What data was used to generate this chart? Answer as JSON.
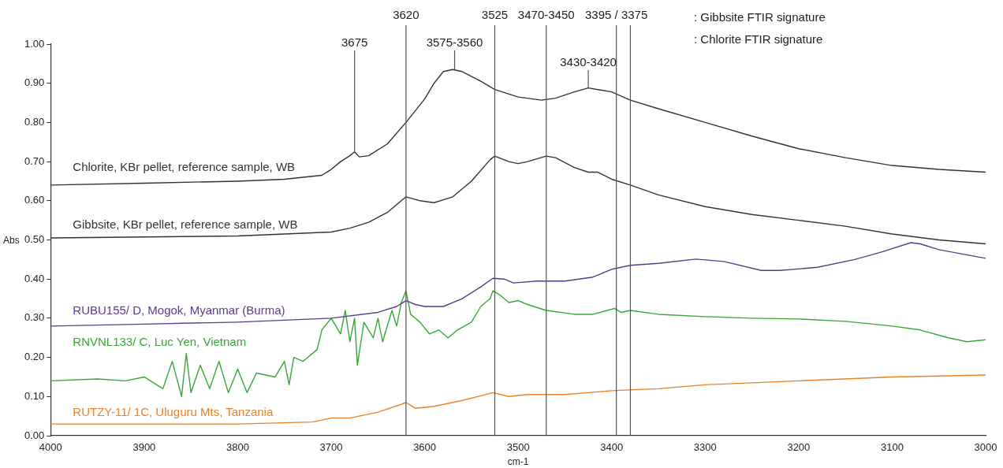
{
  "chart_data": {
    "type": "line",
    "xlabel": "cm-1",
    "ylabel": "Abs",
    "xlim": [
      4000,
      3000
    ],
    "xticks": [
      4000,
      3900,
      3800,
      3700,
      3600,
      3500,
      3400,
      3300,
      3200,
      3100,
      3000
    ],
    "ylim": [
      0,
      1
    ],
    "yticks": [
      {
        "value": 0,
        "label": "0.00"
      },
      {
        "value": 0.1,
        "label": "0.10"
      },
      {
        "value": 0.2,
        "label": "0.20"
      },
      {
        "value": 0.3,
        "label": "0.30"
      },
      {
        "value": 0.4,
        "label": "0.40"
      },
      {
        "value": 0.5,
        "label": "0.50"
      },
      {
        "value": 0.6,
        "label": "0.60"
      },
      {
        "value": 0.7,
        "label": "0.70"
      },
      {
        "value": 0.8,
        "label": "0.80"
      },
      {
        "value": 0.9,
        "label": "0.90"
      },
      {
        "value": 1,
        "label": "1.00"
      }
    ],
    "grid": false,
    "legend": false,
    "marker": "none",
    "line_style": "solid",
    "series": [
      {
        "name": "Chlorite, KBr pellet, reference sample, WB",
        "color": "#333333",
        "x": [
          4000,
          3900,
          3800,
          3750,
          3710,
          3700,
          3690,
          3680,
          3675,
          3670,
          3660,
          3640,
          3620,
          3600,
          3590,
          3580,
          3570,
          3560,
          3540,
          3525,
          3500,
          3475,
          3460,
          3440,
          3425,
          3400,
          3380,
          3350,
          3300,
          3250,
          3200,
          3150,
          3100,
          3050,
          3000
        ],
        "values": [
          0.64,
          0.645,
          0.65,
          0.655,
          0.665,
          0.68,
          0.7,
          0.715,
          0.725,
          0.712,
          0.715,
          0.745,
          0.8,
          0.86,
          0.9,
          0.93,
          0.935,
          0.93,
          0.905,
          0.884,
          0.865,
          0.857,
          0.862,
          0.878,
          0.888,
          0.878,
          0.857,
          0.835,
          0.8,
          0.765,
          0.733,
          0.71,
          0.69,
          0.68,
          0.673
        ]
      },
      {
        "name": "Gibbsite, KBr pellet, reference sample, WB",
        "color": "#333333",
        "x": [
          4000,
          3800,
          3700,
          3680,
          3660,
          3640,
          3625,
          3620,
          3605,
          3590,
          3570,
          3550,
          3530,
          3525,
          3510,
          3500,
          3490,
          3470,
          3460,
          3440,
          3425,
          3415,
          3400,
          3380,
          3350,
          3300,
          3250,
          3200,
          3150,
          3100,
          3050,
          3000
        ],
        "values": [
          0.505,
          0.51,
          0.52,
          0.53,
          0.545,
          0.57,
          0.6,
          0.61,
          0.6,
          0.595,
          0.61,
          0.65,
          0.705,
          0.714,
          0.7,
          0.695,
          0.7,
          0.714,
          0.71,
          0.685,
          0.673,
          0.673,
          0.655,
          0.64,
          0.615,
          0.585,
          0.565,
          0.55,
          0.535,
          0.515,
          0.5,
          0.49
        ]
      },
      {
        "name": "RUBU155/ D, Mogok, Myanmar (Burma)",
        "color": "#5b3a8c",
        "x": [
          4000,
          3900,
          3800,
          3700,
          3650,
          3630,
          3620,
          3610,
          3600,
          3580,
          3560,
          3540,
          3527,
          3515,
          3505,
          3480,
          3450,
          3420,
          3400,
          3380,
          3350,
          3310,
          3280,
          3240,
          3220,
          3180,
          3140,
          3110,
          3080,
          3070,
          3050,
          3000
        ],
        "values": [
          0.28,
          0.285,
          0.29,
          0.3,
          0.315,
          0.33,
          0.345,
          0.335,
          0.33,
          0.33,
          0.35,
          0.38,
          0.402,
          0.4,
          0.39,
          0.395,
          0.395,
          0.405,
          0.425,
          0.435,
          0.44,
          0.451,
          0.445,
          0.422,
          0.422,
          0.43,
          0.45,
          0.47,
          0.493,
          0.49,
          0.475,
          0.453
        ]
      },
      {
        "name": "RNVNL133/ C, Luc Yen, Vietnam",
        "color": "#3aa53a",
        "x": [
          4000,
          3950,
          3920,
          3900,
          3880,
          3870,
          3860,
          3855,
          3850,
          3840,
          3830,
          3820,
          3810,
          3800,
          3790,
          3780,
          3760,
          3750,
          3745,
          3740,
          3730,
          3715,
          3710,
          3700,
          3690,
          3685,
          3680,
          3675,
          3672,
          3665,
          3655,
          3650,
          3645,
          3635,
          3630,
          3625,
          3620,
          3615,
          3605,
          3595,
          3585,
          3575,
          3565,
          3550,
          3540,
          3530,
          3527,
          3520,
          3510,
          3500,
          3490,
          3470,
          3440,
          3420,
          3397,
          3390,
          3380,
          3350,
          3300,
          3250,
          3200,
          3150,
          3100,
          3070,
          3040,
          3020,
          3000
        ],
        "values": [
          0.14,
          0.145,
          0.14,
          0.15,
          0.12,
          0.19,
          0.1,
          0.21,
          0.11,
          0.18,
          0.12,
          0.19,
          0.11,
          0.17,
          0.11,
          0.16,
          0.15,
          0.19,
          0.13,
          0.2,
          0.19,
          0.22,
          0.27,
          0.3,
          0.26,
          0.32,
          0.24,
          0.3,
          0.18,
          0.29,
          0.25,
          0.3,
          0.24,
          0.32,
          0.28,
          0.34,
          0.37,
          0.31,
          0.29,
          0.26,
          0.27,
          0.25,
          0.27,
          0.29,
          0.33,
          0.35,
          0.37,
          0.36,
          0.34,
          0.345,
          0.335,
          0.32,
          0.31,
          0.31,
          0.325,
          0.315,
          0.32,
          0.31,
          0.304,
          0.3,
          0.298,
          0.292,
          0.28,
          0.27,
          0.25,
          0.24,
          0.245
        ]
      },
      {
        "name": "RUTZY-11/ 1C, Uluguru Mts, Tanzania",
        "color": "#e8822a",
        "x": [
          4000,
          3800,
          3720,
          3700,
          3680,
          3650,
          3625,
          3620,
          3610,
          3590,
          3560,
          3535,
          3527,
          3510,
          3490,
          3450,
          3400,
          3350,
          3300,
          3200,
          3100,
          3000
        ],
        "values": [
          0.03,
          0.03,
          0.035,
          0.045,
          0.045,
          0.06,
          0.08,
          0.085,
          0.07,
          0.075,
          0.09,
          0.105,
          0.11,
          0.1,
          0.105,
          0.105,
          0.115,
          0.12,
          0.13,
          0.14,
          0.15,
          0.155
        ]
      }
    ],
    "ref_lines": [
      {
        "axis": "x",
        "value": 3620,
        "label": "3620"
      },
      {
        "axis": "x",
        "value": 3525,
        "label": "3525"
      },
      {
        "axis": "x",
        "value": 3470,
        "label": "3470-3450"
      },
      {
        "axis": "x",
        "value": 3395,
        "label": "3395 / 3375"
      },
      {
        "axis": "x",
        "value": 3380,
        "label": null
      }
    ],
    "annotations": [
      {
        "text": "3675",
        "x": 3675,
        "y": 0.725
      },
      {
        "text": "3575-3560",
        "x": 3568,
        "y": 0.935
      },
      {
        "text": "3430-3420",
        "x": 3425,
        "y": 0.888
      },
      ": Gibbsite FTIR signature",
      ": Chlorite FTIR signature"
    ]
  }
}
